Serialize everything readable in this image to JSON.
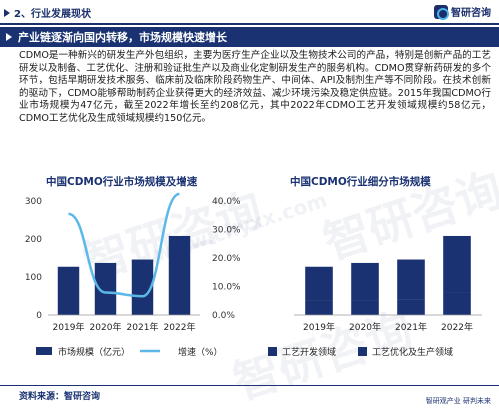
{
  "header": {
    "section": "2、行业发展现状",
    "logo_text": "智研咨询"
  },
  "headline": "产业链逐渐向国内转移，市场规模快速增长",
  "body_text": "CDMO是一种新兴的研发生产外包组织，主要为医疗生产企业以及生物技术公司的产品，特别是创新产品的工艺研发以及制备、工艺优化、注册和验证批生产以及商业化定制研发生产的服务机构。CDMO贯穿新药研发的多个环节，包括早期研发技术服务、临床前及临床阶段药物生产、中间体、API及制剂生产等不同阶段。在技术创新的驱动下，CDMO能够帮助制药企业获得更大的经济效益、减少环境污染及稳定供应链。2015年我国CDMO行业市场规模为47亿元，截至2022年增长至约208亿元，其中2022年CDMO工艺开发领域规模约58亿元，CDMO工艺优化及生成领域规模约150亿元。",
  "watermark": {
    "brand": "智研咨询",
    "url": "www.chyxx.com"
  },
  "footer": {
    "source": "资料来源：智研咨询",
    "right": "智研观产业  研判未来"
  },
  "colors": {
    "navy": "#1a3272",
    "accent_line": "#5bb8e8",
    "bar_dark": "#1a3272"
  },
  "chart_data": [
    {
      "type": "bar",
      "title": "中国CDMO行业市场规模及增速",
      "categories": [
        "2019年",
        "2020年",
        "2021年",
        "2022年"
      ],
      "y_ticks": [
        "0",
        "100",
        "200",
        "300"
      ],
      "ylim": [
        0,
        300
      ],
      "y2_ticks": [
        "0.0%",
        "10.0%",
        "20.0%",
        "30.0%",
        "40.0%"
      ],
      "y2lim": [
        0,
        40
      ],
      "series": [
        {
          "name": "市场规模（亿元）",
          "kind": "bar",
          "values": [
            127,
            137,
            146,
            208
          ],
          "color": "#1a3272"
        },
        {
          "name": "增速（%）",
          "kind": "line",
          "values": [
            35.5,
            7.9,
            6.6,
            42.5
          ],
          "color": "#5bb8e8"
        }
      ]
    },
    {
      "type": "bar",
      "stacked": true,
      "title": "中国CDMO行业细分市场规模",
      "categories": [
        "2019年",
        "2020年",
        "2021年",
        "2022年"
      ],
      "ylim": [
        0,
        300
      ],
      "series": [
        {
          "name": "工艺开发领域",
          "values": [
            37,
            38,
            41,
            58
          ],
          "color": "#1a3272"
        },
        {
          "name": "工艺优化及生产领域",
          "values": [
            90,
            99,
            105,
            150
          ],
          "color": "#1a3272"
        }
      ]
    }
  ]
}
